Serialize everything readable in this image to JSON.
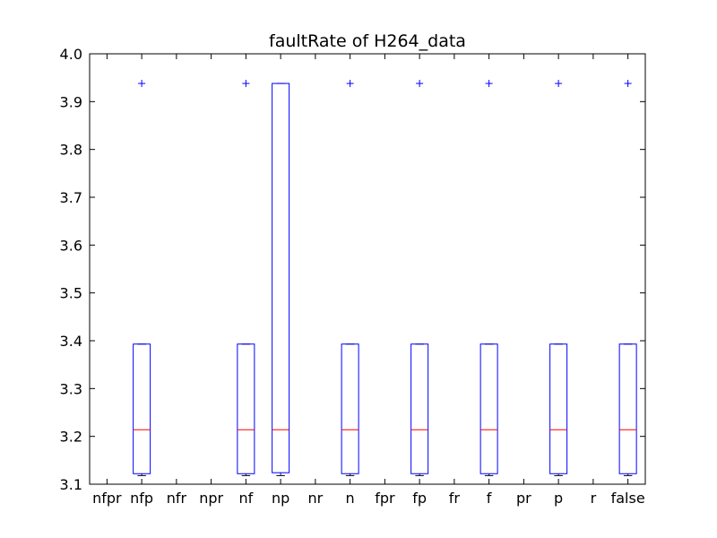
{
  "chart_data": {
    "type": "box",
    "title": "faultRate of H264_data",
    "xlabel": "",
    "ylabel": "",
    "ylim": [
      3.1,
      4.0
    ],
    "yticks": [
      "3.1",
      "3.2",
      "3.3",
      "3.4",
      "3.5",
      "3.6",
      "3.7",
      "3.8",
      "3.9",
      "4.0"
    ],
    "categories": [
      "nfpr",
      "nfp",
      "nfr",
      "npr",
      "nf",
      "np",
      "nr",
      "n",
      "fpr",
      "fp",
      "fr",
      "f",
      "pr",
      "p",
      "r",
      "false"
    ],
    "boxes": [
      {
        "category": "nfpr",
        "stats": null
      },
      {
        "category": "nfp",
        "stats": {
          "whislo": 3.118,
          "q1": 3.122,
          "med": 3.214,
          "q3": 3.393,
          "whishi": 3.393,
          "fliers": [
            3.938
          ]
        }
      },
      {
        "category": "nfr",
        "stats": null
      },
      {
        "category": "npr",
        "stats": null
      },
      {
        "category": "nf",
        "stats": {
          "whislo": 3.118,
          "q1": 3.122,
          "med": 3.214,
          "q3": 3.393,
          "whishi": 3.393,
          "fliers": [
            3.938
          ]
        }
      },
      {
        "category": "np",
        "stats": {
          "whislo": 3.118,
          "q1": 3.124,
          "med": 3.214,
          "q3": 3.938,
          "whishi": 3.938,
          "fliers": []
        }
      },
      {
        "category": "nr",
        "stats": null
      },
      {
        "category": "n",
        "stats": {
          "whislo": 3.118,
          "q1": 3.122,
          "med": 3.214,
          "q3": 3.393,
          "whishi": 3.393,
          "fliers": [
            3.938
          ]
        }
      },
      {
        "category": "fpr",
        "stats": null
      },
      {
        "category": "fp",
        "stats": {
          "whislo": 3.118,
          "q1": 3.122,
          "med": 3.214,
          "q3": 3.393,
          "whishi": 3.393,
          "fliers": [
            3.938
          ]
        }
      },
      {
        "category": "fr",
        "stats": null
      },
      {
        "category": "f",
        "stats": {
          "whislo": 3.118,
          "q1": 3.122,
          "med": 3.214,
          "q3": 3.393,
          "whishi": 3.393,
          "fliers": [
            3.938
          ]
        }
      },
      {
        "category": "pr",
        "stats": null
      },
      {
        "category": "p",
        "stats": {
          "whislo": 3.118,
          "q1": 3.122,
          "med": 3.214,
          "q3": 3.393,
          "whishi": 3.393,
          "fliers": [
            3.938
          ]
        }
      },
      {
        "category": "r",
        "stats": null
      },
      {
        "category": "false",
        "stats": {
          "whislo": 3.118,
          "q1": 3.122,
          "med": 3.214,
          "q3": 3.393,
          "whishi": 3.393,
          "fliers": [
            3.938
          ]
        }
      }
    ],
    "colors": {
      "box": "#0000ff",
      "median": "#ff0000",
      "flier": "#0000ff"
    },
    "grid": false,
    "legend": "none"
  }
}
